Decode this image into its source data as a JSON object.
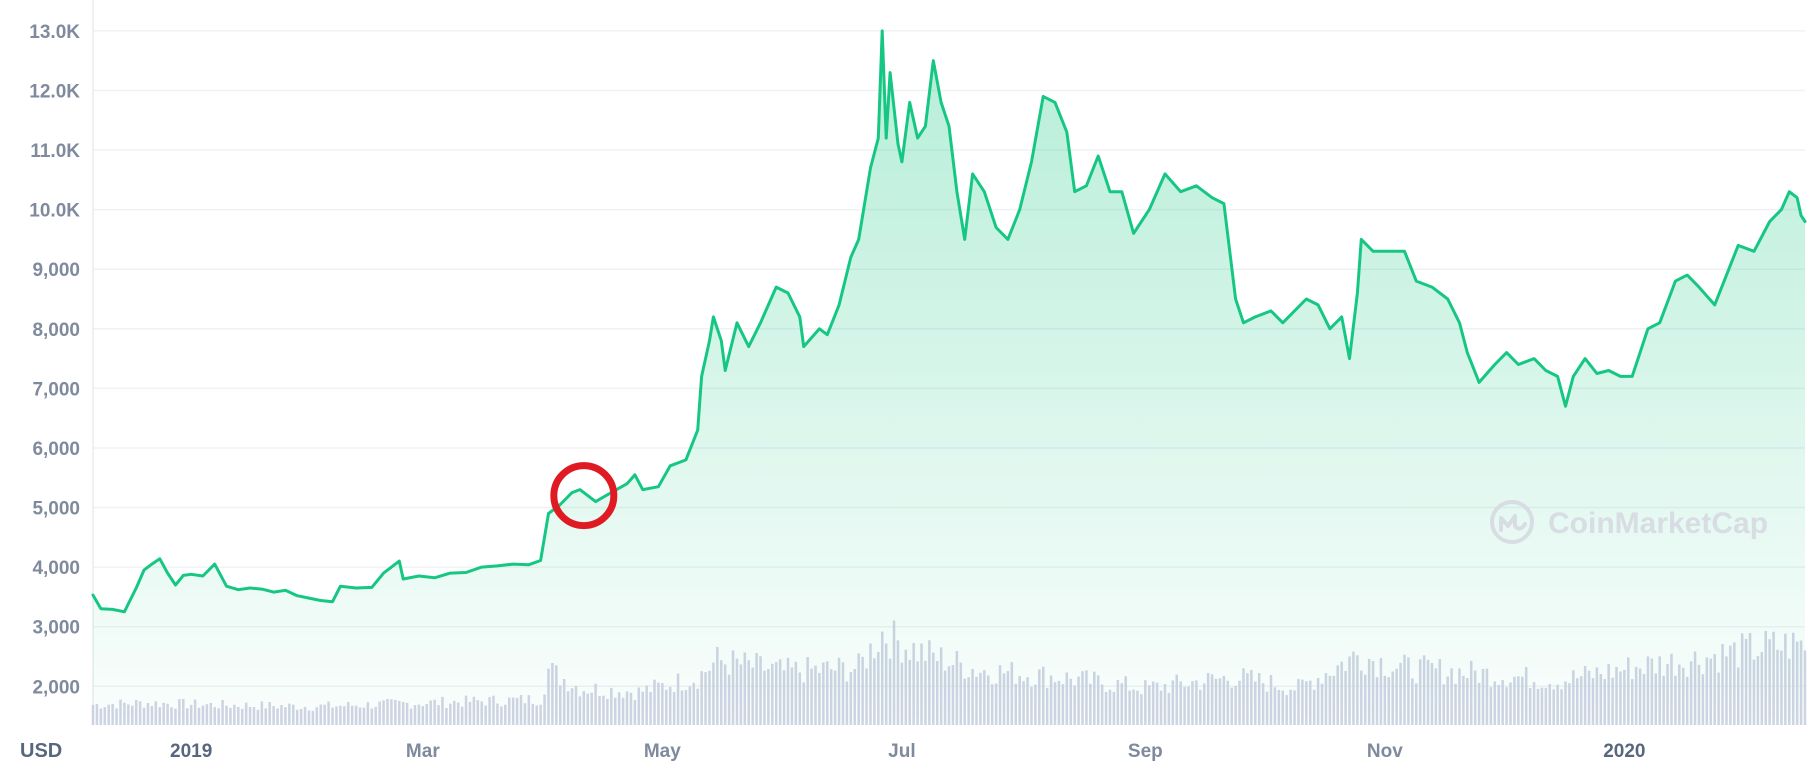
{
  "chart_data": {
    "type": "area",
    "currency_label": "USD",
    "y_ticks": [
      {
        "value": 2000,
        "label": "2,000"
      },
      {
        "value": 3000,
        "label": "3,000"
      },
      {
        "value": 4000,
        "label": "4,000"
      },
      {
        "value": 5000,
        "label": "5,000"
      },
      {
        "value": 6000,
        "label": "6,000"
      },
      {
        "value": 7000,
        "label": "7,000"
      },
      {
        "value": 8000,
        "label": "8,000"
      },
      {
        "value": 9000,
        "label": "9,000"
      },
      {
        "value": 10000,
        "label": "10.0K"
      },
      {
        "value": 11000,
        "label": "11.0K"
      },
      {
        "value": 12000,
        "label": "12.0K"
      },
      {
        "value": 13000,
        "label": "13.0K"
      }
    ],
    "ylim": [
      1350,
      13350
    ],
    "xlim": [
      "2018-12-07",
      "2020-02-16"
    ],
    "x_ticks": [
      {
        "date": "2019-01-01",
        "label": "2019",
        "strong": true
      },
      {
        "date": "2019-03-01",
        "label": "Mar",
        "strong": false
      },
      {
        "date": "2019-05-01",
        "label": "May",
        "strong": false
      },
      {
        "date": "2019-07-01",
        "label": "Jul",
        "strong": false
      },
      {
        "date": "2019-09-01",
        "label": "Sep",
        "strong": false
      },
      {
        "date": "2019-11-01",
        "label": "Nov",
        "strong": false
      },
      {
        "date": "2020-01-01",
        "label": "2020",
        "strong": true
      }
    ],
    "grid": true,
    "line_color": "#16c784",
    "fill_color": "#16c784",
    "volume_color": "#c9cde0",
    "highlight_color": "#e01a22",
    "series": [
      {
        "points": [
          [
            "2018-12-07",
            3530
          ],
          [
            "2018-12-09",
            3300
          ],
          [
            "2018-12-12",
            3290
          ],
          [
            "2018-12-15",
            3250
          ],
          [
            "2018-12-18",
            3650
          ],
          [
            "2018-12-20",
            3950
          ],
          [
            "2018-12-22",
            4050
          ],
          [
            "2018-12-24",
            4140
          ],
          [
            "2018-12-26",
            3900
          ],
          [
            "2018-12-28",
            3700
          ],
          [
            "2018-12-30",
            3860
          ],
          [
            "2019-01-01",
            3880
          ],
          [
            "2019-01-04",
            3850
          ],
          [
            "2019-01-07",
            4050
          ],
          [
            "2019-01-10",
            3680
          ],
          [
            "2019-01-13",
            3620
          ],
          [
            "2019-01-16",
            3650
          ],
          [
            "2019-01-19",
            3630
          ],
          [
            "2019-01-22",
            3580
          ],
          [
            "2019-01-25",
            3610
          ],
          [
            "2019-01-28",
            3520
          ],
          [
            "2019-01-31",
            3480
          ],
          [
            "2019-02-03",
            3440
          ],
          [
            "2019-02-06",
            3420
          ],
          [
            "2019-02-08",
            3680
          ],
          [
            "2019-02-12",
            3650
          ],
          [
            "2019-02-16",
            3660
          ],
          [
            "2019-02-19",
            3900
          ],
          [
            "2019-02-23",
            4100
          ],
          [
            "2019-02-24",
            3800
          ],
          [
            "2019-02-28",
            3850
          ],
          [
            "2019-03-04",
            3820
          ],
          [
            "2019-03-08",
            3900
          ],
          [
            "2019-03-12",
            3910
          ],
          [
            "2019-03-16",
            4000
          ],
          [
            "2019-03-20",
            4020
          ],
          [
            "2019-03-24",
            4050
          ],
          [
            "2019-03-28",
            4040
          ],
          [
            "2019-03-31",
            4110
          ],
          [
            "2019-04-02",
            4900
          ],
          [
            "2019-04-05",
            5050
          ],
          [
            "2019-04-08",
            5250
          ],
          [
            "2019-04-10",
            5300
          ],
          [
            "2019-04-14",
            5100
          ],
          [
            "2019-04-18",
            5250
          ],
          [
            "2019-04-22",
            5400
          ],
          [
            "2019-04-24",
            5550
          ],
          [
            "2019-04-26",
            5300
          ],
          [
            "2019-04-30",
            5350
          ],
          [
            "2019-05-03",
            5700
          ],
          [
            "2019-05-07",
            5800
          ],
          [
            "2019-05-10",
            6300
          ],
          [
            "2019-05-11",
            7200
          ],
          [
            "2019-05-13",
            7800
          ],
          [
            "2019-05-14",
            8200
          ],
          [
            "2019-05-16",
            7800
          ],
          [
            "2019-05-17",
            7300
          ],
          [
            "2019-05-20",
            8100
          ],
          [
            "2019-05-23",
            7700
          ],
          [
            "2019-05-26",
            8100
          ],
          [
            "2019-05-30",
            8700
          ],
          [
            "2019-06-02",
            8600
          ],
          [
            "2019-06-05",
            8200
          ],
          [
            "2019-06-06",
            7700
          ],
          [
            "2019-06-10",
            8000
          ],
          [
            "2019-06-12",
            7900
          ],
          [
            "2019-06-15",
            8400
          ],
          [
            "2019-06-18",
            9200
          ],
          [
            "2019-06-20",
            9500
          ],
          [
            "2019-06-23",
            10700
          ],
          [
            "2019-06-25",
            11200
          ],
          [
            "2019-06-26",
            13000
          ],
          [
            "2019-06-27",
            11200
          ],
          [
            "2019-06-28",
            12300
          ],
          [
            "2019-06-30",
            11100
          ],
          [
            "2019-07-01",
            10800
          ],
          [
            "2019-07-03",
            11800
          ],
          [
            "2019-07-05",
            11200
          ],
          [
            "2019-07-07",
            11400
          ],
          [
            "2019-07-09",
            12500
          ],
          [
            "2019-07-11",
            11800
          ],
          [
            "2019-07-13",
            11400
          ],
          [
            "2019-07-15",
            10300
          ],
          [
            "2019-07-17",
            9500
          ],
          [
            "2019-07-19",
            10600
          ],
          [
            "2019-07-22",
            10300
          ],
          [
            "2019-07-25",
            9700
          ],
          [
            "2019-07-28",
            9500
          ],
          [
            "2019-07-31",
            10000
          ],
          [
            "2019-08-03",
            10800
          ],
          [
            "2019-08-06",
            11900
          ],
          [
            "2019-08-09",
            11800
          ],
          [
            "2019-08-12",
            11300
          ],
          [
            "2019-08-14",
            10300
          ],
          [
            "2019-08-17",
            10400
          ],
          [
            "2019-08-20",
            10900
          ],
          [
            "2019-08-23",
            10300
          ],
          [
            "2019-08-26",
            10300
          ],
          [
            "2019-08-29",
            9600
          ],
          [
            "2019-09-02",
            10000
          ],
          [
            "2019-09-06",
            10600
          ],
          [
            "2019-09-10",
            10300
          ],
          [
            "2019-09-14",
            10400
          ],
          [
            "2019-09-18",
            10200
          ],
          [
            "2019-09-21",
            10100
          ],
          [
            "2019-09-24",
            8500
          ],
          [
            "2019-09-26",
            8100
          ],
          [
            "2019-09-29",
            8200
          ],
          [
            "2019-10-03",
            8300
          ],
          [
            "2019-10-06",
            8100
          ],
          [
            "2019-10-09",
            8300
          ],
          [
            "2019-10-12",
            8500
          ],
          [
            "2019-10-15",
            8400
          ],
          [
            "2019-10-18",
            8000
          ],
          [
            "2019-10-21",
            8200
          ],
          [
            "2019-10-23",
            7500
          ],
          [
            "2019-10-25",
            8600
          ],
          [
            "2019-10-26",
            9500
          ],
          [
            "2019-10-29",
            9300
          ],
          [
            "2019-11-02",
            9300
          ],
          [
            "2019-11-06",
            9300
          ],
          [
            "2019-11-09",
            8800
          ],
          [
            "2019-11-13",
            8700
          ],
          [
            "2019-11-17",
            8500
          ],
          [
            "2019-11-20",
            8100
          ],
          [
            "2019-11-22",
            7600
          ],
          [
            "2019-11-25",
            7100
          ],
          [
            "2019-11-29",
            7400
          ],
          [
            "2019-12-02",
            7600
          ],
          [
            "2019-12-05",
            7400
          ],
          [
            "2019-12-09",
            7500
          ],
          [
            "2019-12-12",
            7300
          ],
          [
            "2019-12-15",
            7200
          ],
          [
            "2019-12-17",
            6700
          ],
          [
            "2019-12-19",
            7200
          ],
          [
            "2019-12-22",
            7500
          ],
          [
            "2019-12-25",
            7250
          ],
          [
            "2019-12-28",
            7300
          ],
          [
            "2019-12-31",
            7200
          ],
          [
            "2020-01-03",
            7200
          ],
          [
            "2020-01-07",
            8000
          ],
          [
            "2020-01-10",
            8100
          ],
          [
            "2020-01-14",
            8800
          ],
          [
            "2020-01-17",
            8900
          ],
          [
            "2020-01-20",
            8700
          ],
          [
            "2020-01-24",
            8400
          ],
          [
            "2020-01-27",
            8900
          ],
          [
            "2020-01-30",
            9400
          ],
          [
            "2020-02-03",
            9300
          ],
          [
            "2020-02-07",
            9800
          ],
          [
            "2020-02-10",
            10000
          ],
          [
            "2020-02-12",
            10300
          ],
          [
            "2020-02-14",
            10200
          ],
          [
            "2020-02-15",
            9900
          ],
          [
            "2020-02-16",
            9800
          ]
        ]
      }
    ],
    "volume": [
      [
        "2018-12-07",
        0.22
      ],
      [
        "2018-12-20",
        0.24
      ],
      [
        "2019-01-05",
        0.22
      ],
      [
        "2019-02-01",
        0.2
      ],
      [
        "2019-03-01",
        0.24
      ],
      [
        "2019-03-31",
        0.28
      ],
      [
        "2019-04-02",
        0.6
      ],
      [
        "2019-04-10",
        0.4
      ],
      [
        "2019-04-25",
        0.36
      ],
      [
        "2019-05-10",
        0.52
      ],
      [
        "2019-05-15",
        0.7
      ],
      [
        "2019-06-01",
        0.58
      ],
      [
        "2019-06-20",
        0.62
      ],
      [
        "2019-06-26",
        1.0
      ],
      [
        "2019-07-05",
        0.8
      ],
      [
        "2019-07-20",
        0.6
      ],
      [
        "2019-08-10",
        0.52
      ],
      [
        "2019-09-01",
        0.4
      ],
      [
        "2019-09-24",
        0.52
      ],
      [
        "2019-10-10",
        0.4
      ],
      [
        "2019-10-25",
        0.76
      ],
      [
        "2019-11-05",
        0.62
      ],
      [
        "2019-11-25",
        0.56
      ],
      [
        "2019-12-15",
        0.48
      ],
      [
        "2020-01-05",
        0.64
      ],
      [
        "2020-01-20",
        0.72
      ],
      [
        "2020-02-05",
        0.84
      ],
      [
        "2020-02-16",
        0.88
      ]
    ],
    "highlight": {
      "date": "2019-04-11",
      "value": 5200
    }
  },
  "watermark": {
    "text": "CoinMarketCap",
    "icon": "coinmarketcap-logo-icon"
  }
}
